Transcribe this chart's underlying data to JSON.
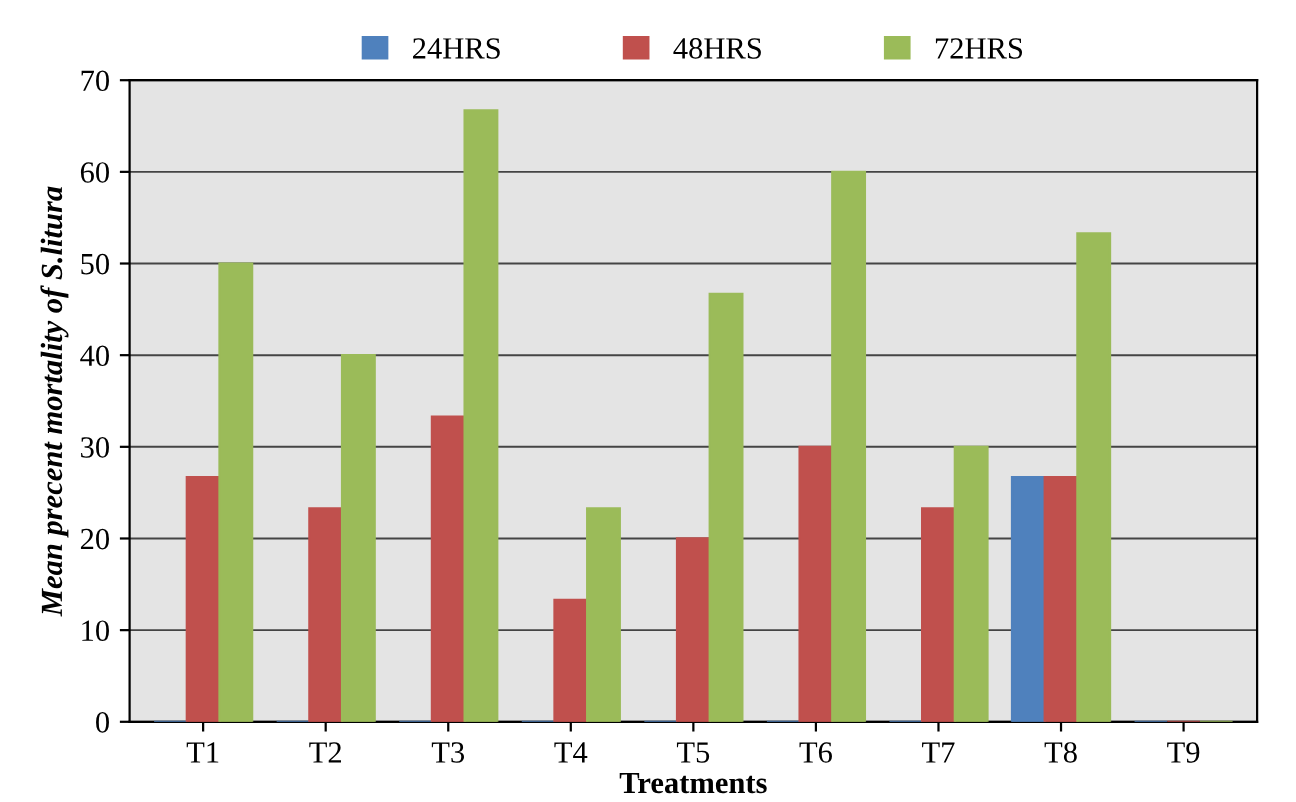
{
  "chart_data": {
    "type": "bar",
    "xlabel": "Treatments",
    "ylabel": "Mean precent mortality of S.litura",
    "categories": [
      "T1",
      "T2",
      "T3",
      "T4",
      "T5",
      "T6",
      "T7",
      "T8",
      "T9"
    ],
    "series": [
      {
        "name": "24HRS",
        "color": "#4f81bd",
        "values": [
          0,
          0,
          0,
          0,
          0,
          0,
          0,
          26.7,
          0
        ]
      },
      {
        "name": "48HRS",
        "color": "#c0504d",
        "values": [
          26.7,
          23.3,
          33.3,
          13.3,
          20,
          30,
          23.3,
          26.7,
          0
        ]
      },
      {
        "name": "72HRS",
        "color": "#9bbb59",
        "values": [
          50,
          40,
          66.7,
          23.3,
          46.7,
          60,
          30,
          53.3,
          0
        ]
      }
    ],
    "ylim": [
      0,
      70
    ],
    "yticks": [
      0,
      10,
      20,
      30,
      40,
      50,
      60,
      70
    ],
    "grid": "y",
    "legend": "top"
  }
}
